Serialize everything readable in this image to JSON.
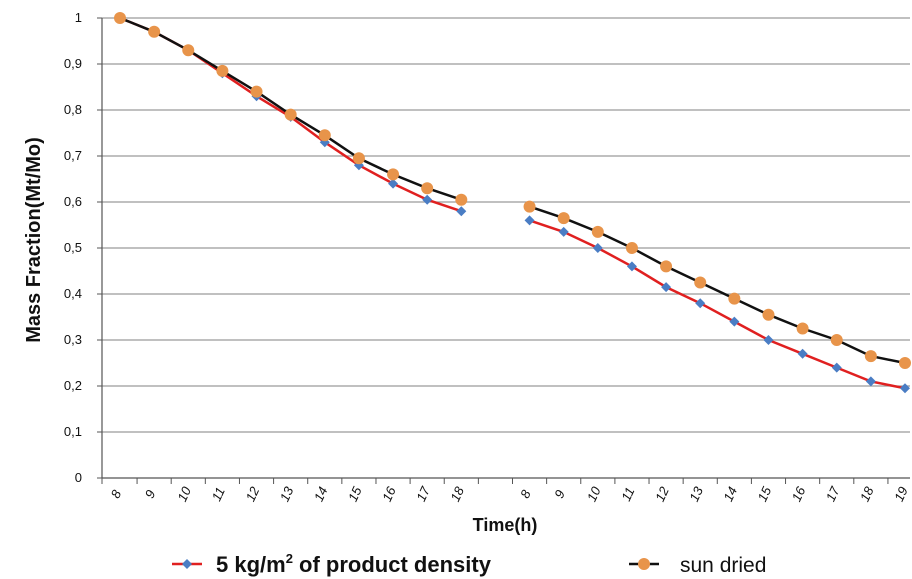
{
  "chart_data": {
    "type": "line",
    "xlabel": "Time(h)",
    "ylabel": "Mass Fraction(Mt/Mo)",
    "ylim": [
      0,
      1
    ],
    "yticks": [
      "0",
      "0,1",
      "0,2",
      "0,3",
      "0,4",
      "0,5",
      "0,6",
      "0,7",
      "0,8",
      "0,9",
      "1"
    ],
    "categories": [
      "8",
      "9",
      "10",
      "11",
      "12",
      "13",
      "14",
      "15",
      "16",
      "17",
      "18",
      "",
      "8",
      "9",
      "10",
      "11",
      "12",
      "13",
      "14",
      "15",
      "16",
      "17",
      "18",
      "19"
    ],
    "grid": true,
    "legend_position": "bottom",
    "series": [
      {
        "name": "5 kg/m",
        "name_sup": "2",
        "name_rest": " of product density",
        "color": "#e02020",
        "marker_color": "#4a7dc4",
        "marker": "diamond",
        "values": [
          1.0,
          0.97,
          0.93,
          0.88,
          0.83,
          0.785,
          0.73,
          0.68,
          0.64,
          0.605,
          0.58,
          null,
          0.56,
          0.535,
          0.5,
          0.46,
          0.415,
          0.38,
          0.34,
          0.3,
          0.27,
          0.24,
          0.21,
          0.195
        ]
      },
      {
        "name": "sun dried",
        "color": "#111111",
        "marker_color": "#e8944a",
        "marker": "circle",
        "values": [
          1.0,
          0.97,
          0.93,
          0.885,
          0.84,
          0.79,
          0.745,
          0.695,
          0.66,
          0.63,
          0.605,
          null,
          0.59,
          0.565,
          0.535,
          0.5,
          0.46,
          0.425,
          0.39,
          0.355,
          0.325,
          0.3,
          0.265,
          0.25
        ]
      }
    ]
  }
}
